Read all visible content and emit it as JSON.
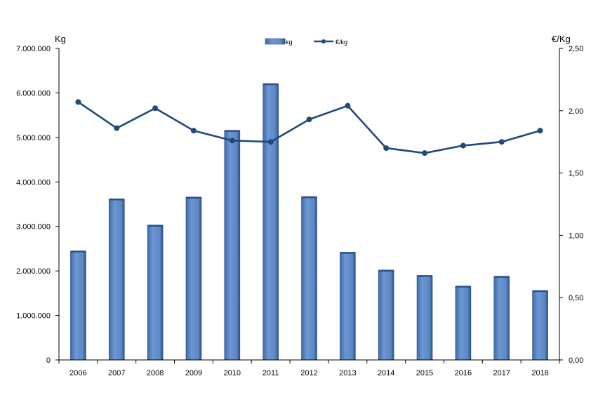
{
  "chart_data": {
    "type": "bar",
    "categories": [
      "2006",
      "2007",
      "2008",
      "2009",
      "2010",
      "2011",
      "2012",
      "2013",
      "2014",
      "2015",
      "2016",
      "2017",
      "2018"
    ],
    "series": [
      {
        "name": "kg",
        "type": "bar",
        "axis": "left",
        "values": [
          2440000,
          3610000,
          3020000,
          3650000,
          5150000,
          6200000,
          3660000,
          2410000,
          2010000,
          1890000,
          1650000,
          1870000,
          1550000
        ]
      },
      {
        "name": "€/kg",
        "type": "line",
        "axis": "right",
        "values": [
          2.07,
          1.86,
          2.02,
          1.84,
          1.76,
          1.75,
          1.93,
          2.04,
          1.7,
          1.66,
          1.72,
          1.75,
          1.84
        ]
      }
    ],
    "ylabel": "Kg",
    "y2label": "€/Kg",
    "ylim": [
      0,
      7000000
    ],
    "y2lim": [
      0,
      2.5
    ],
    "yticks": [
      "0",
      "1.000.000",
      "2.000.000",
      "3.000.000",
      "4.000.000",
      "5.000.000",
      "6.000.000",
      "7.000.000"
    ],
    "y2ticks": [
      "0,00",
      "0,50",
      "1,00",
      "1,50",
      "2,00",
      "2,50"
    ],
    "legend": "top-center",
    "grid": false,
    "colors": {
      "bar": "#5b87c5",
      "bar_dark": "#2c4f86",
      "line": "#1f4a7c",
      "axis": "#000000"
    }
  }
}
